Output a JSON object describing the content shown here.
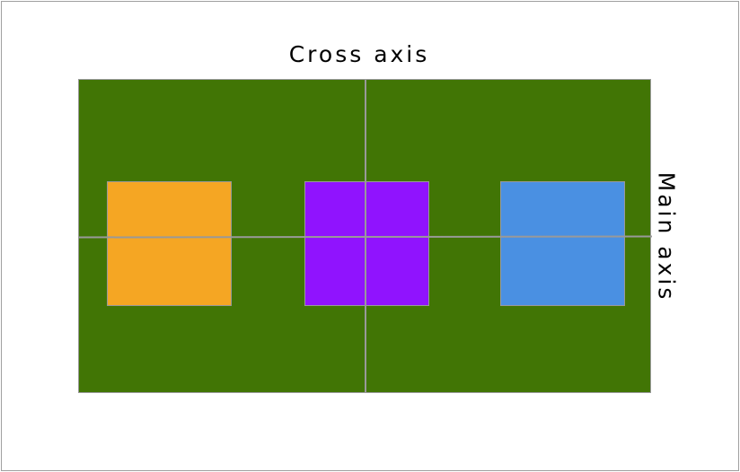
{
  "labels": {
    "cross_axis": "Cross axis",
    "main_axis": "Main axis"
  },
  "colors": {
    "container": "#417505",
    "items": [
      "#f5a623",
      "#9013fe",
      "#4a90e2"
    ],
    "axis_lines": "#999999"
  },
  "items": [
    {
      "color": "#f5a623"
    },
    {
      "color": "#9013fe"
    },
    {
      "color": "#4a90e2"
    }
  ]
}
